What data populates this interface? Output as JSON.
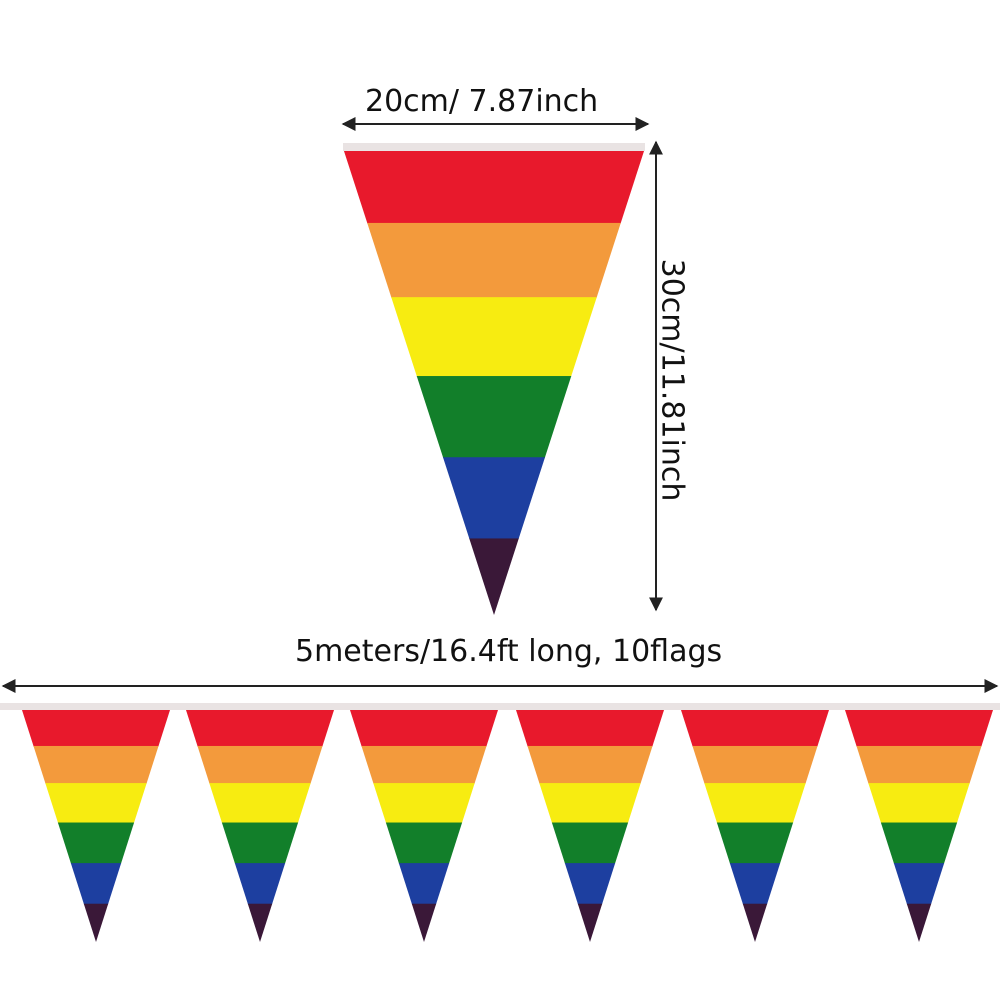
{
  "labels": {
    "width": "20cm/ 7.87inch",
    "height": "30cm/11.81inch",
    "length": "5meters/16.4ft long, 10flags"
  },
  "stripe_colors": [
    "#e8192c",
    "#f39a3c",
    "#f7ec11",
    "#127f2a",
    "#1d3fa0",
    "#3a1838"
  ],
  "string_color": "#e9e3e3",
  "arrow_color": "#222222"
}
